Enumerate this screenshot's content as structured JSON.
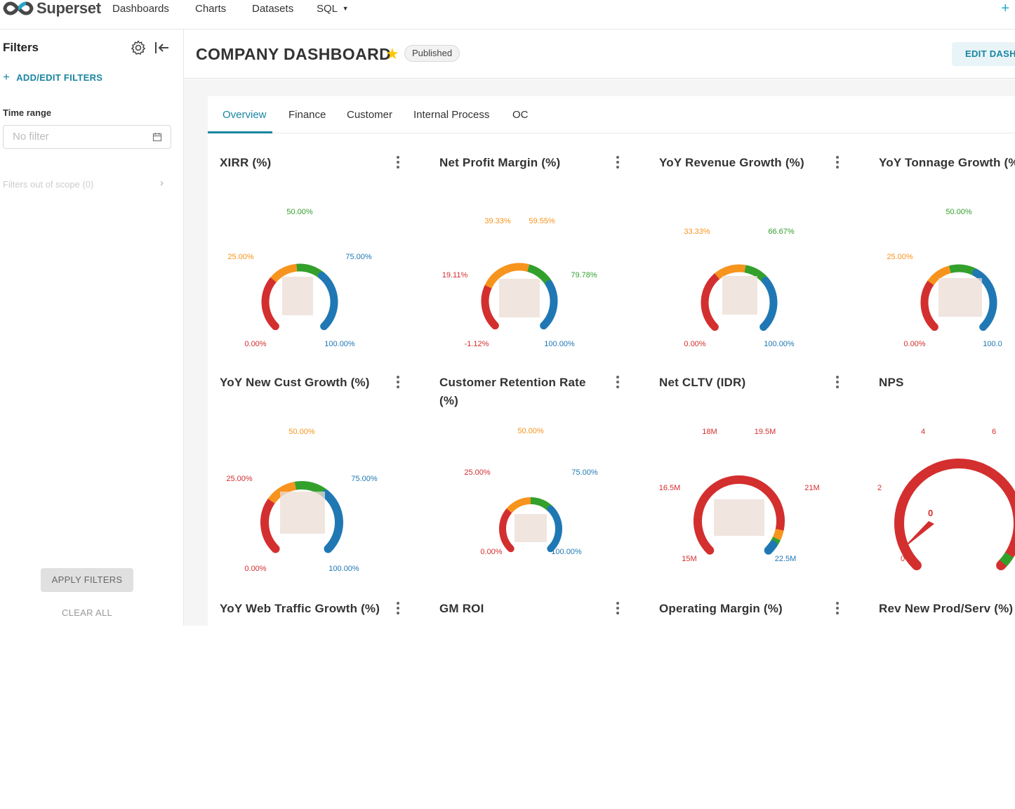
{
  "app": {
    "name": "Superset"
  },
  "nav": {
    "items": [
      "Dashboards",
      "Charts",
      "Datasets",
      "SQL"
    ],
    "plus": "+"
  },
  "filters": {
    "title": "Filters",
    "add_label": "ADD/EDIT FILTERS",
    "time_range_label": "Time range",
    "time_range_placeholder": "No filter",
    "out_of_scope": "Filters out of scope (0)",
    "apply_label": "APPLY FILTERS",
    "clear_label": "CLEAR ALL"
  },
  "dashboard": {
    "title": "COMPANY DASHBOARD",
    "status": "Published",
    "edit_label": "EDIT DASHBOARD"
  },
  "tabs": [
    "Overview",
    "Finance",
    "Customer",
    "Internal Process",
    "OC"
  ],
  "active_tab": "Overview",
  "colors": {
    "red": "#d32f2f",
    "orange": "#f7941d",
    "green": "#33a02c",
    "blue": "#1f78b4",
    "accent": "#1a85a0"
  },
  "charts": [
    {
      "title": "XIRR (%)",
      "labels": [
        "0.00%",
        "25.00%",
        "50.00%",
        "75.00%",
        "100.00%"
      ]
    },
    {
      "title": "Net Profit Margin (%)",
      "labels": [
        "-1.12%",
        "19.11%",
        "39.33%",
        "59.55%",
        "79.78%",
        "100.00%"
      ]
    },
    {
      "title": "YoY Revenue Growth (%)",
      "labels": [
        "0.00%",
        "33.33%",
        "66.67%",
        "100.00%"
      ]
    },
    {
      "title": "YoY Tonnage Growth (%)",
      "labels": [
        "0.00%",
        "25.00%",
        "50.00%",
        "100.0"
      ]
    },
    {
      "title": "YoY New Cust Growth (%)",
      "labels": [
        "0.00%",
        "25.00%",
        "50.00%",
        "75.00%",
        "100.00%"
      ]
    },
    {
      "title": "Customer Retention Rate (%)",
      "labels": [
        "0.00%",
        "25.00%",
        "50.00%",
        "75.00%",
        "100.00%"
      ]
    },
    {
      "title": "Net CLTV (IDR)",
      "labels": [
        "15M",
        "16.5M",
        "18M",
        "19.5M",
        "21M",
        "22.5M"
      ]
    },
    {
      "title": "NPS",
      "labels": [
        "0",
        "2",
        "4",
        "6"
      ],
      "value": "0"
    },
    {
      "title": "YoY Web Traffic Growth (%)"
    },
    {
      "title": "GM ROI"
    },
    {
      "title": "Operating Margin (%)"
    },
    {
      "title": "Rev New Prod/Serv (%)"
    }
  ]
}
